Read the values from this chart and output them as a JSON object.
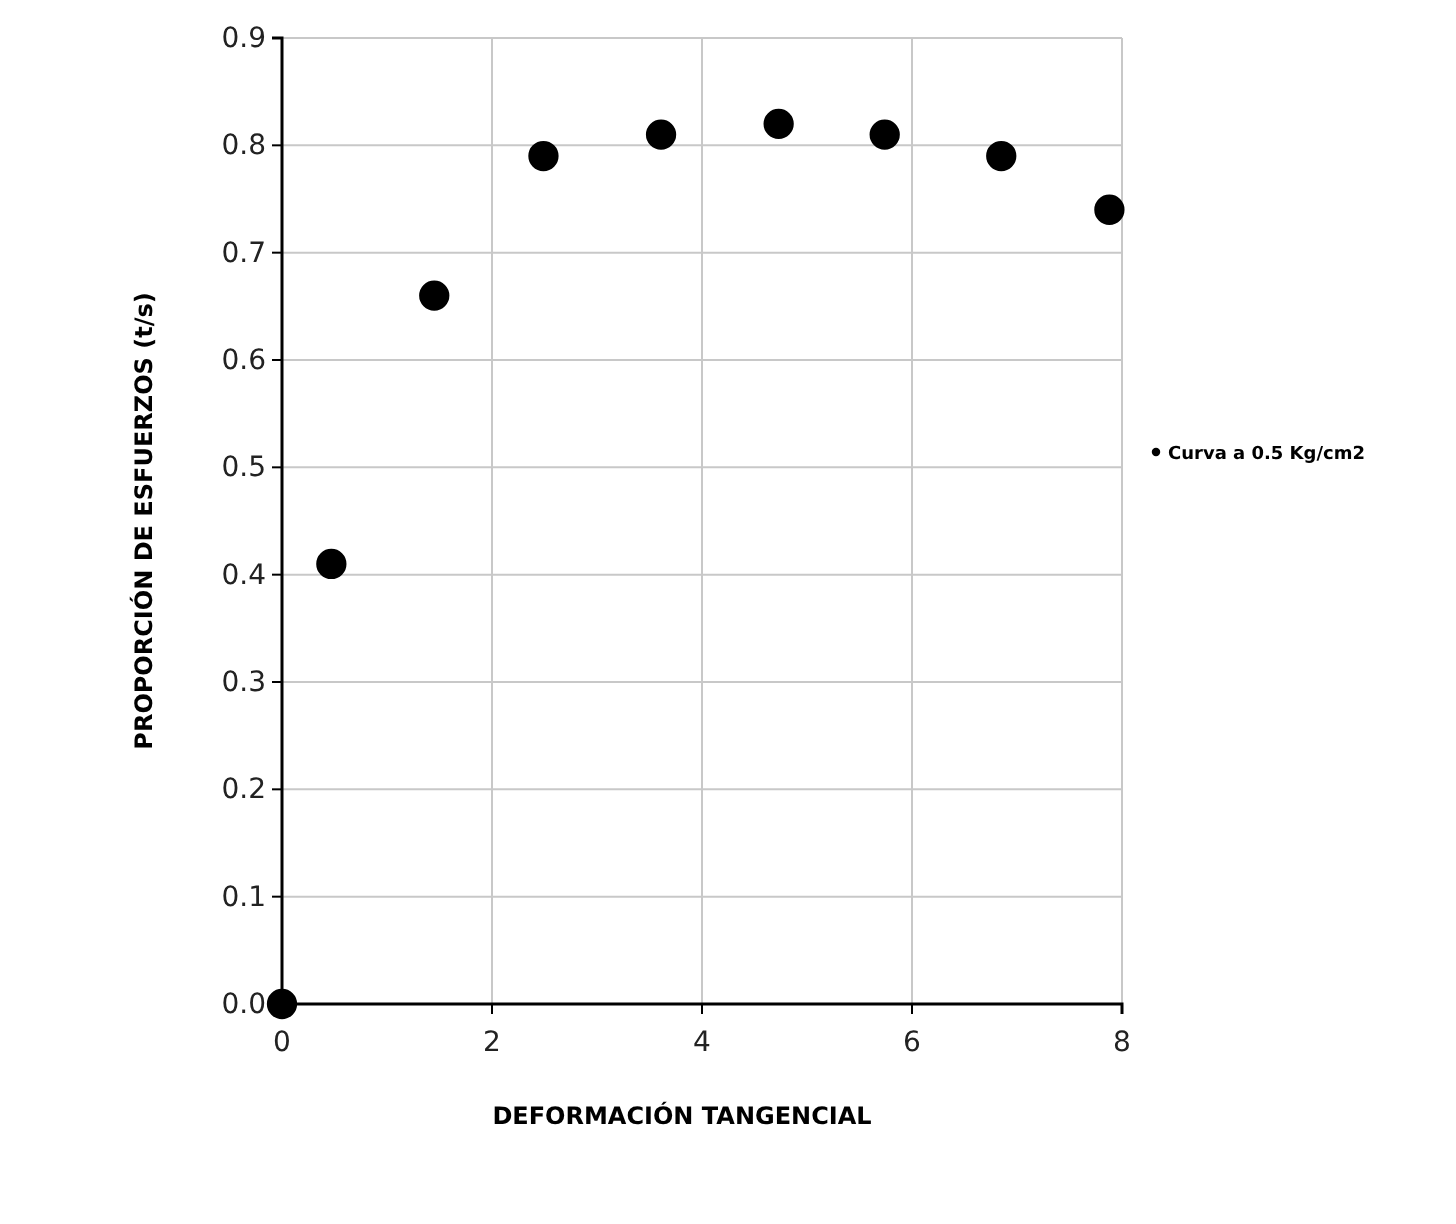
{
  "chart_data": {
    "type": "scatter",
    "xlabel": "DEFORMACIÓN TANGENCIAL",
    "ylabel": "PROPORCIÓN DE ESFUERZOS (t/s)",
    "x": [
      0,
      0.47,
      1.45,
      2.49,
      3.61,
      4.73,
      5.74,
      6.85,
      7.88
    ],
    "series": [
      {
        "name": "Curva a 0.5 Kg/cm2",
        "color": "#000000",
        "values": [
          0,
          0.41,
          0.66,
          0.79,
          0.81,
          0.82,
          0.81,
          0.79,
          0.74
        ]
      }
    ],
    "xlim": [
      0,
      8
    ],
    "xticks": [
      0,
      2,
      4,
      6,
      8
    ],
    "ylim": [
      0,
      0.9
    ],
    "yticks": [
      {
        "value": 0,
        "label": "0.0"
      },
      0.1,
      0.2,
      0.3,
      0.4,
      0.5,
      0.6,
      0.7,
      0.8,
      0.9
    ],
    "grid": true,
    "legend": "right",
    "marker": "circle"
  }
}
